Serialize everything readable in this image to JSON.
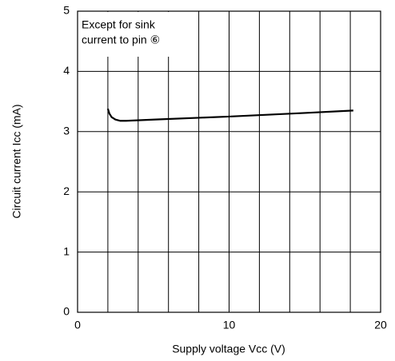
{
  "chart_data": {
    "type": "line",
    "x_label": "Supply voltage Vcc (V)",
    "y_label": "Circuit current Icc (mA)",
    "annotation": [
      "Except for sink",
      "current to pin ⑥"
    ],
    "x": [
      2,
      2.1,
      2.25,
      2.5,
      2.8,
      3.2,
      5,
      10,
      15,
      18.2
    ],
    "values": [
      3.38,
      3.3,
      3.24,
      3.2,
      3.18,
      3.18,
      3.2,
      3.25,
      3.31,
      3.35
    ],
    "color": "#000000",
    "xlim": [
      0,
      20
    ],
    "xticks": [
      0,
      10,
      20
    ],
    "xminor_grid": [
      2,
      4,
      6,
      8,
      12,
      14,
      16,
      18
    ],
    "ylim": [
      0,
      5
    ],
    "yticks": [
      0,
      1,
      2,
      3,
      4,
      5
    ],
    "grid": true
  }
}
